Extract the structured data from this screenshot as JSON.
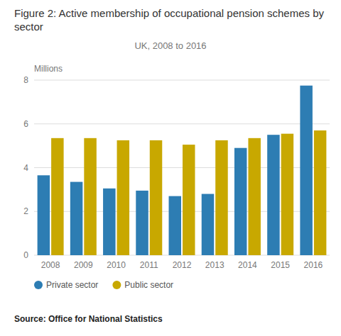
{
  "chart_data": {
    "type": "bar",
    "title": "Figure 2: Active membership of occupational pension schemes by sector",
    "subtitle": "UK, 2008 to 2016",
    "ylabel": "Millions",
    "annotations": [
      "Source: Office for National Statistics"
    ],
    "categories": [
      "2008",
      "2009",
      "2010",
      "2011",
      "2012",
      "2013",
      "2014",
      "2015",
      "2016"
    ],
    "series": [
      {
        "name": "Private sector",
        "color": "#2d7db3",
        "values": [
          3.65,
          3.35,
          3.05,
          2.95,
          2.7,
          2.8,
          4.9,
          5.5,
          7.75
        ]
      },
      {
        "name": "Public sector",
        "color": "#c8a800",
        "values": [
          5.35,
          5.35,
          5.25,
          5.25,
          5.05,
          5.25,
          5.35,
          5.55,
          5.7
        ]
      }
    ],
    "ylim": [
      0,
      8
    ],
    "yticks": [
      0,
      2,
      4,
      6,
      8
    ],
    "grid": true,
    "legend": "bottom"
  }
}
